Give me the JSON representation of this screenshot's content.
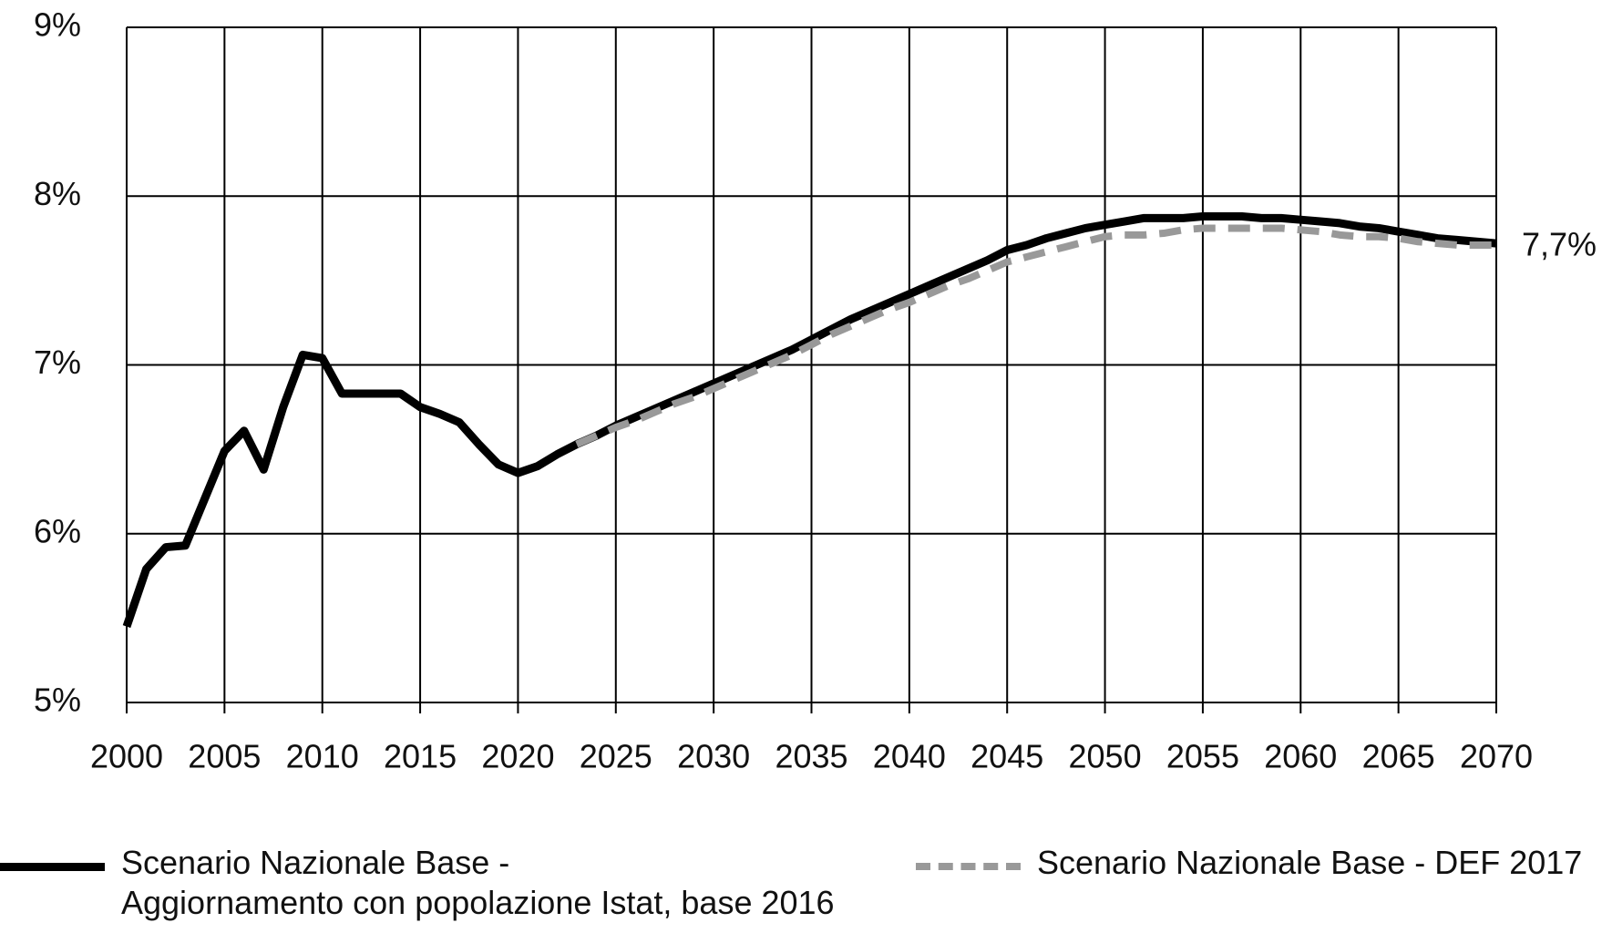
{
  "chart_data": {
    "type": "line",
    "x": [
      2000,
      2001,
      2002,
      2003,
      2004,
      2005,
      2006,
      2007,
      2008,
      2009,
      2010,
      2011,
      2012,
      2013,
      2014,
      2015,
      2016,
      2017,
      2018,
      2019,
      2020,
      2021,
      2022,
      2023,
      2024,
      2025,
      2026,
      2027,
      2028,
      2029,
      2030,
      2031,
      2032,
      2033,
      2034,
      2035,
      2036,
      2037,
      2038,
      2039,
      2040,
      2041,
      2042,
      2043,
      2044,
      2045,
      2046,
      2047,
      2048,
      2049,
      2050,
      2051,
      2052,
      2053,
      2054,
      2055,
      2056,
      2057,
      2058,
      2059,
      2060,
      2061,
      2062,
      2063,
      2064,
      2065,
      2066,
      2067,
      2068,
      2069,
      2070
    ],
    "series": [
      {
        "name": "Scenario Nazionale Base -\nAggiornamento con popolazione Istat, base 2016",
        "color": "#000000",
        "dashed": false,
        "values": [
          5.45,
          5.79,
          5.92,
          5.93,
          6.21,
          6.49,
          6.61,
          6.38,
          6.75,
          7.06,
          7.04,
          6.83,
          6.83,
          6.83,
          6.83,
          6.75,
          6.71,
          6.66,
          6.53,
          6.41,
          6.36,
          6.4,
          6.47,
          6.53,
          6.58,
          6.64,
          6.69,
          6.74,
          6.79,
          6.84,
          6.89,
          6.94,
          6.99,
          7.04,
          7.09,
          7.15,
          7.21,
          7.27,
          7.32,
          7.37,
          7.42,
          7.47,
          7.52,
          7.57,
          7.62,
          7.68,
          7.71,
          7.75,
          7.78,
          7.81,
          7.83,
          7.85,
          7.87,
          7.87,
          7.87,
          7.88,
          7.88,
          7.88,
          7.87,
          7.87,
          7.86,
          7.85,
          7.84,
          7.82,
          7.81,
          7.79,
          7.77,
          7.75,
          7.74,
          7.73,
          7.72
        ]
      },
      {
        "name": "Scenario Nazionale Base - DEF 2017",
        "color": "#999999",
        "dashed": true,
        "values": [
          null,
          null,
          null,
          null,
          null,
          null,
          null,
          null,
          null,
          null,
          null,
          null,
          null,
          null,
          null,
          null,
          null,
          null,
          null,
          null,
          null,
          null,
          null,
          6.53,
          6.58,
          6.63,
          6.67,
          6.72,
          6.77,
          6.81,
          6.86,
          6.91,
          6.96,
          7.01,
          7.06,
          7.12,
          7.18,
          7.23,
          7.28,
          7.33,
          7.37,
          7.42,
          7.47,
          7.51,
          7.56,
          7.61,
          7.64,
          7.67,
          7.7,
          7.73,
          7.76,
          7.77,
          7.77,
          7.78,
          7.8,
          7.81,
          7.81,
          7.81,
          7.81,
          7.81,
          7.8,
          7.79,
          7.77,
          7.76,
          7.76,
          7.75,
          7.73,
          7.72,
          7.71,
          7.71,
          7.71
        ]
      }
    ],
    "xlim": [
      2000,
      2070
    ],
    "xticks": [
      2000,
      2005,
      2010,
      2015,
      2020,
      2025,
      2030,
      2035,
      2040,
      2045,
      2050,
      2055,
      2060,
      2065,
      2070
    ],
    "ylim": [
      5,
      9
    ],
    "yticks": [
      {
        "value": 5,
        "label": "5%"
      },
      {
        "value": 6,
        "label": "6%"
      },
      {
        "value": 7,
        "label": "7%"
      },
      {
        "value": 8,
        "label": "8%"
      },
      {
        "value": 9,
        "label": "9%"
      }
    ],
    "annotations": [
      {
        "text": "7,7%",
        "x": 2070,
        "y": 7.72
      }
    ],
    "grid": true,
    "legend": "bottom"
  }
}
